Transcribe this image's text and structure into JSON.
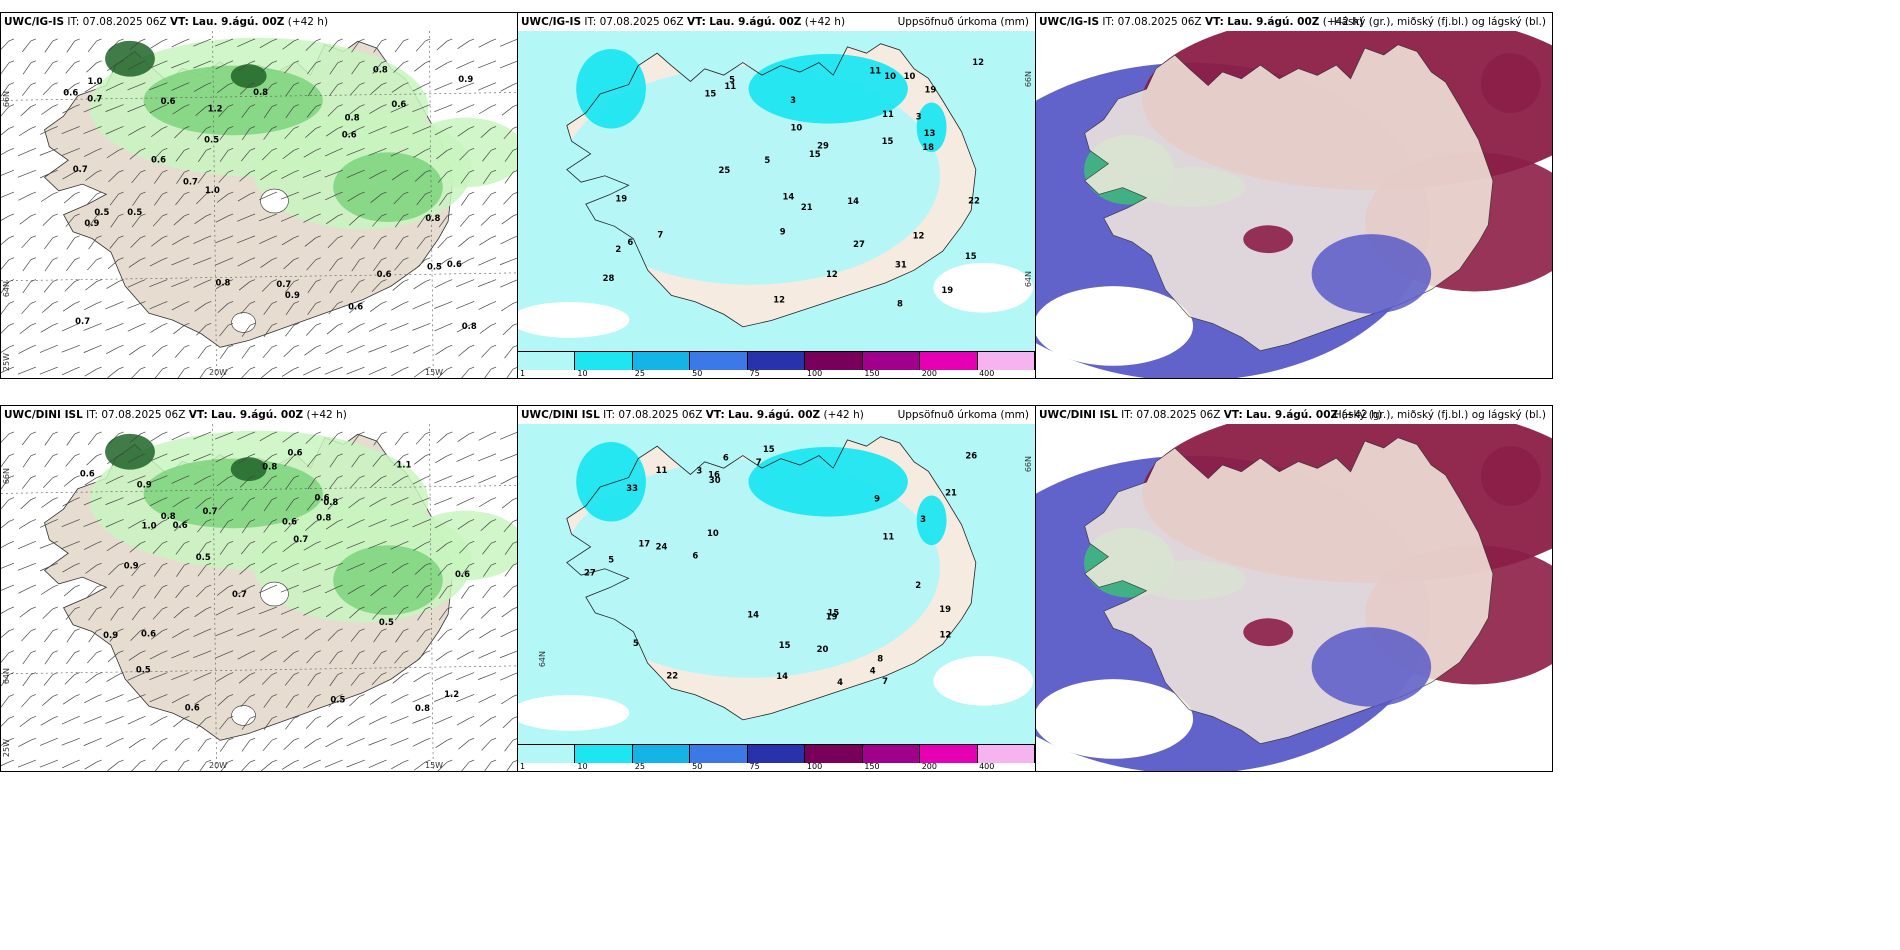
{
  "panels": [
    {
      "model": "UWC/IG-IS",
      "it_label": "IT:",
      "it": "07.08.2025 06Z",
      "vt_label": "VT:",
      "vt": "Lau. 9.ágú. 00Z",
      "lead": "(+42 h)",
      "right_title": "",
      "kind": "wind"
    },
    {
      "model": "UWC/IG-IS",
      "it_label": "IT:",
      "it": "07.08.2025 06Z",
      "vt_label": "VT:",
      "vt": "Lau. 9.ágú. 00Z",
      "lead": "(+42 h)",
      "right_title": "Uppsöfnuð úrkoma (mm)",
      "kind": "precip"
    },
    {
      "model": "UWC/IG-IS",
      "it_label": "IT:",
      "it": "07.08.2025 06Z",
      "vt_label": "VT:",
      "vt": "Lau. 9.ágú. 00Z",
      "lead": "(+42 h)",
      "right_title": "Háský (gr.), miðský (fj.bl.) og lágský (bl.)",
      "kind": "cloud"
    },
    {
      "model": "UWC/DINI ISL",
      "it_label": "IT:",
      "it": "07.08.2025 06Z",
      "vt_label": "VT:",
      "vt": "Lau. 9.ágú. 00Z",
      "lead": "(+42 h)",
      "right_title": "",
      "kind": "wind"
    },
    {
      "model": "UWC/DINI ISL",
      "it_label": "IT:",
      "it": "07.08.2025 06Z",
      "vt_label": "VT:",
      "vt": "Lau. 9.ágú. 00Z",
      "lead": "(+42 h)",
      "right_title": "Uppsöfnuð úrkoma (mm)",
      "kind": "precip"
    },
    {
      "model": "UWC/DINI ISL",
      "it_label": "IT:",
      "it": "07.08.2025 06Z",
      "vt_label": "VT:",
      "vt": "Lau. 9.ágú. 00Z",
      "lead": "(+42 h)",
      "right_title": "Háský (gr.), miðský (fj.bl.) og lágský (bl.)",
      "kind": "cloud"
    }
  ],
  "axes": {
    "lon_20w": "20W",
    "lon_15w": "15W",
    "lat_66n": "66N",
    "lat_64n": "64N",
    "lat_25w": "25W"
  },
  "legend": {
    "labels": [
      "1",
      "10",
      "25",
      "50",
      "75",
      "100",
      "150",
      "200",
      "400"
    ],
    "colors": [
      "#b3f7f7",
      "#1ee6f0",
      "#14b4e6",
      "#3c78e6",
      "#2832aa",
      "#78005a",
      "#a0008c",
      "#e600b4",
      "#f5b4f0"
    ]
  },
  "colors": {
    "land": "#f5ebe0",
    "land_wind": "#e6dccf",
    "precip_light": "#b3f7f7",
    "precip_mid": "#1ee6f0",
    "green_light": "#c8f5c0",
    "green_mid": "#78d278",
    "green_dark": "#1e6428",
    "cloud_high": "#8c1e46",
    "cloud_mid": "#5a5ac8",
    "cloud_low": "#3cbe78"
  },
  "wind_values_top": [
    "0.5",
    "0.6",
    "0.7",
    "0.9",
    "0.6",
    "0.5",
    "0.6",
    "0.7",
    "0.5",
    "0.6",
    "0.8",
    "1.0",
    "0.9",
    "0.8",
    "0.6",
    "0.7",
    "0.5",
    "0.8",
    "0.6",
    "1.2",
    "0.7",
    "0.9",
    "1.0",
    "0.8",
    "0.6",
    "0.7",
    "0.8",
    "0.6",
    "0.8"
  ],
  "wind_values_bottom": [
    "0.6",
    "0.8",
    "0.5",
    "0.6",
    "0.9",
    "1.0",
    "0.8",
    "0.7",
    "0.5",
    "1.2",
    "0.9",
    "0.8",
    "0.6",
    "0.7",
    "0.5",
    "0.6",
    "0.9",
    "0.8",
    "0.6",
    "0.5",
    "0.6",
    "0.8",
    "0.6",
    "1.1",
    "0.7",
    "0.6"
  ],
  "precip_values_top": [
    "10",
    "10",
    "12",
    "15",
    "29",
    "25",
    "31",
    "12",
    "19",
    "28",
    "27",
    "22",
    "21",
    "15",
    "11",
    "12",
    "15",
    "19",
    "18",
    "15",
    "11",
    "13",
    "14",
    "6",
    "12",
    "8",
    "5",
    "2",
    "3",
    "14",
    "10",
    "11",
    "9",
    "7",
    "5",
    "19",
    "3"
  ],
  "precip_values_bottom": [
    "11",
    "33",
    "27",
    "30",
    "26",
    "14",
    "15",
    "15",
    "19",
    "21",
    "16",
    "15",
    "20",
    "17",
    "22",
    "14",
    "24",
    "19",
    "11",
    "7",
    "9",
    "8",
    "10",
    "5",
    "3",
    "12",
    "4",
    "6",
    "4",
    "2",
    "3",
    "7",
    "5",
    "6"
  ]
}
